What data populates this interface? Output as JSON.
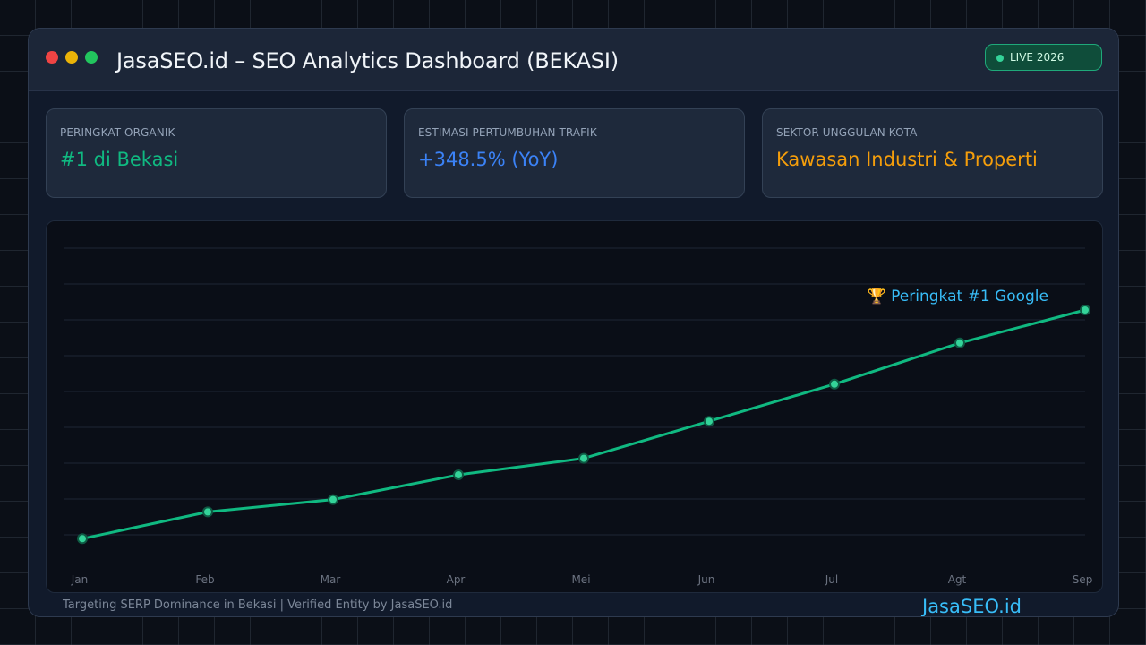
{
  "window": {
    "title": "JasaSEO.id – SEO Analytics Dashboard (BEKASI)",
    "live_badge": "LIVE 2026"
  },
  "cards": [
    {
      "label": "PERINGKAT ORGANIK",
      "value": "#1 di Bekasi",
      "color": "#10b981"
    },
    {
      "label": "ESTIMASI PERTUMBUHAN TRAFIK",
      "value": "+348.5% (YoY)",
      "color": "#3b82f6"
    },
    {
      "label": "SEKTOR UNGGULAN KOTA",
      "value": "Kawasan Industri & Properti",
      "color": "#f59e0b"
    }
  ],
  "chart_data": {
    "type": "line",
    "title": "",
    "xlabel": "",
    "ylabel": "",
    "categories": [
      "Jan",
      "Feb",
      "Mar",
      "Apr",
      "Mei",
      "Jun",
      "Jul",
      "Agt",
      "Sep"
    ],
    "series": [
      {
        "values": [
          4.5,
          11,
          14,
          20,
          24,
          33,
          42,
          52,
          60
        ]
      }
    ],
    "ylim": [
      0,
      75
    ],
    "grid": true,
    "line_color": "#10b981",
    "annotation": {
      "text": "🏆 Peringkat #1 Google",
      "color": "#38bdf8"
    }
  },
  "footer": {
    "text": "Targeting SERP Dominance in Bekasi | Verified Entity by JasaSEO.id",
    "brand": "JasaSEO.id"
  }
}
